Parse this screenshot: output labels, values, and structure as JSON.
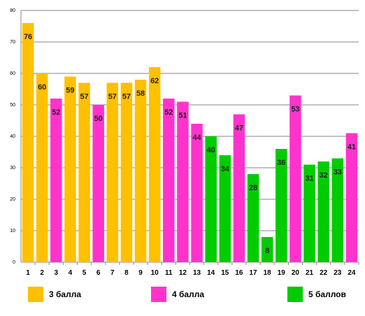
{
  "chart_data": {
    "type": "bar",
    "title": "",
    "xlabel": "",
    "ylabel": "",
    "ylim": [
      0,
      80
    ],
    "yticks": [
      0,
      10,
      20,
      30,
      40,
      50,
      60,
      70,
      80
    ],
    "grid": true,
    "legend_placement": "bottom",
    "categories": [
      "1",
      "2",
      "3",
      "4",
      "5",
      "6",
      "7",
      "8",
      "9",
      "10",
      "11",
      "12",
      "13",
      "14",
      "15",
      "16",
      "17",
      "18",
      "19",
      "20",
      "21",
      "22",
      "23",
      "24"
    ],
    "values": [
      76,
      60,
      52,
      59,
      57,
      50,
      57,
      57,
      58,
      62,
      52,
      51,
      44,
      40,
      34,
      47,
      28,
      8,
      36,
      53,
      31,
      32,
      33,
      41
    ],
    "groups": [
      "3",
      "3",
      "4",
      "3",
      "3",
      "4",
      "3",
      "3",
      "3",
      "3",
      "4",
      "4",
      "4",
      "5",
      "5",
      "4",
      "5",
      "5",
      "5",
      "4",
      "5",
      "5",
      "5",
      "4"
    ],
    "series": [
      {
        "key": "3",
        "name": "3 балла",
        "color": "#FFC000"
      },
      {
        "key": "4",
        "name": "4 балла",
        "color": "#FF33CC"
      },
      {
        "key": "5",
        "name": "5 баллов",
        "color": "#00CC00"
      }
    ]
  }
}
